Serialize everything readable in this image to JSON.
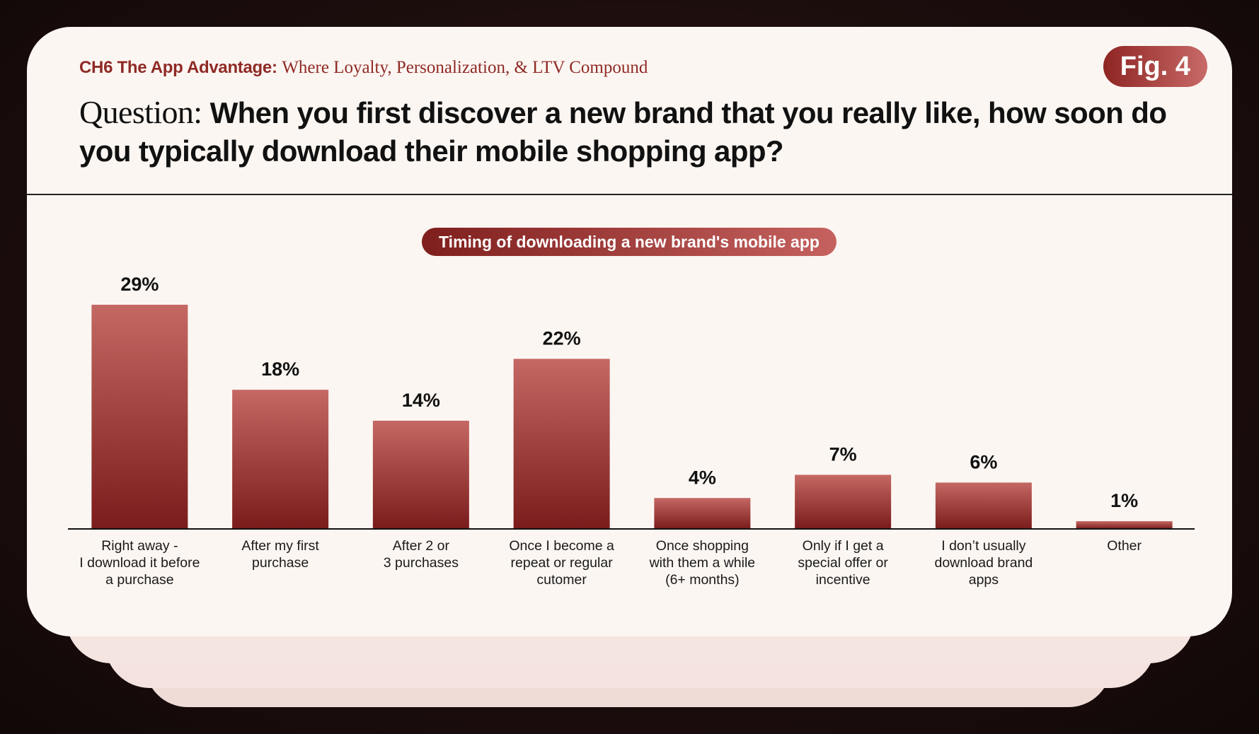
{
  "header": {
    "chapter_code": "CH6 The App Advantage:",
    "chapter_title": "Where Loyalty, Personalization, & LTV Compound",
    "fig_label": "Fig. 4",
    "question_label": "Question:",
    "question_text": "When you first discover a new brand that you really like, how soon do you typically download their mobile shopping app?"
  },
  "chart_data": {
    "type": "bar",
    "title": "Timing of downloading a new brand's mobile app",
    "xlabel": "",
    "ylabel": "",
    "unit": "%",
    "ylim": [
      0,
      30
    ],
    "grid": false,
    "categories": [
      [
        "Right away -",
        "I download it before",
        "a purchase"
      ],
      [
        "After my first",
        "purchase"
      ],
      [
        "After 2 or",
        "3 purchases"
      ],
      [
        "Once I become a",
        "repeat or regular",
        "cutomer"
      ],
      [
        "Once shopping",
        "with them a while",
        "(6+ months)"
      ],
      [
        "Only if I get a",
        "special offer or",
        "incentive"
      ],
      [
        "I don’t usually",
        "download brand",
        "apps"
      ],
      [
        "Other"
      ]
    ],
    "values": [
      29,
      18,
      14,
      22,
      4,
      7,
      6,
      1
    ],
    "value_labels": [
      "29%",
      "18%",
      "14%",
      "22%",
      "4%",
      "7%",
      "6%",
      "1%"
    ],
    "colors": {
      "bar_top": "#c56864",
      "bar_bottom": "#7a1c1b",
      "accent": "#8f2a25"
    }
  }
}
